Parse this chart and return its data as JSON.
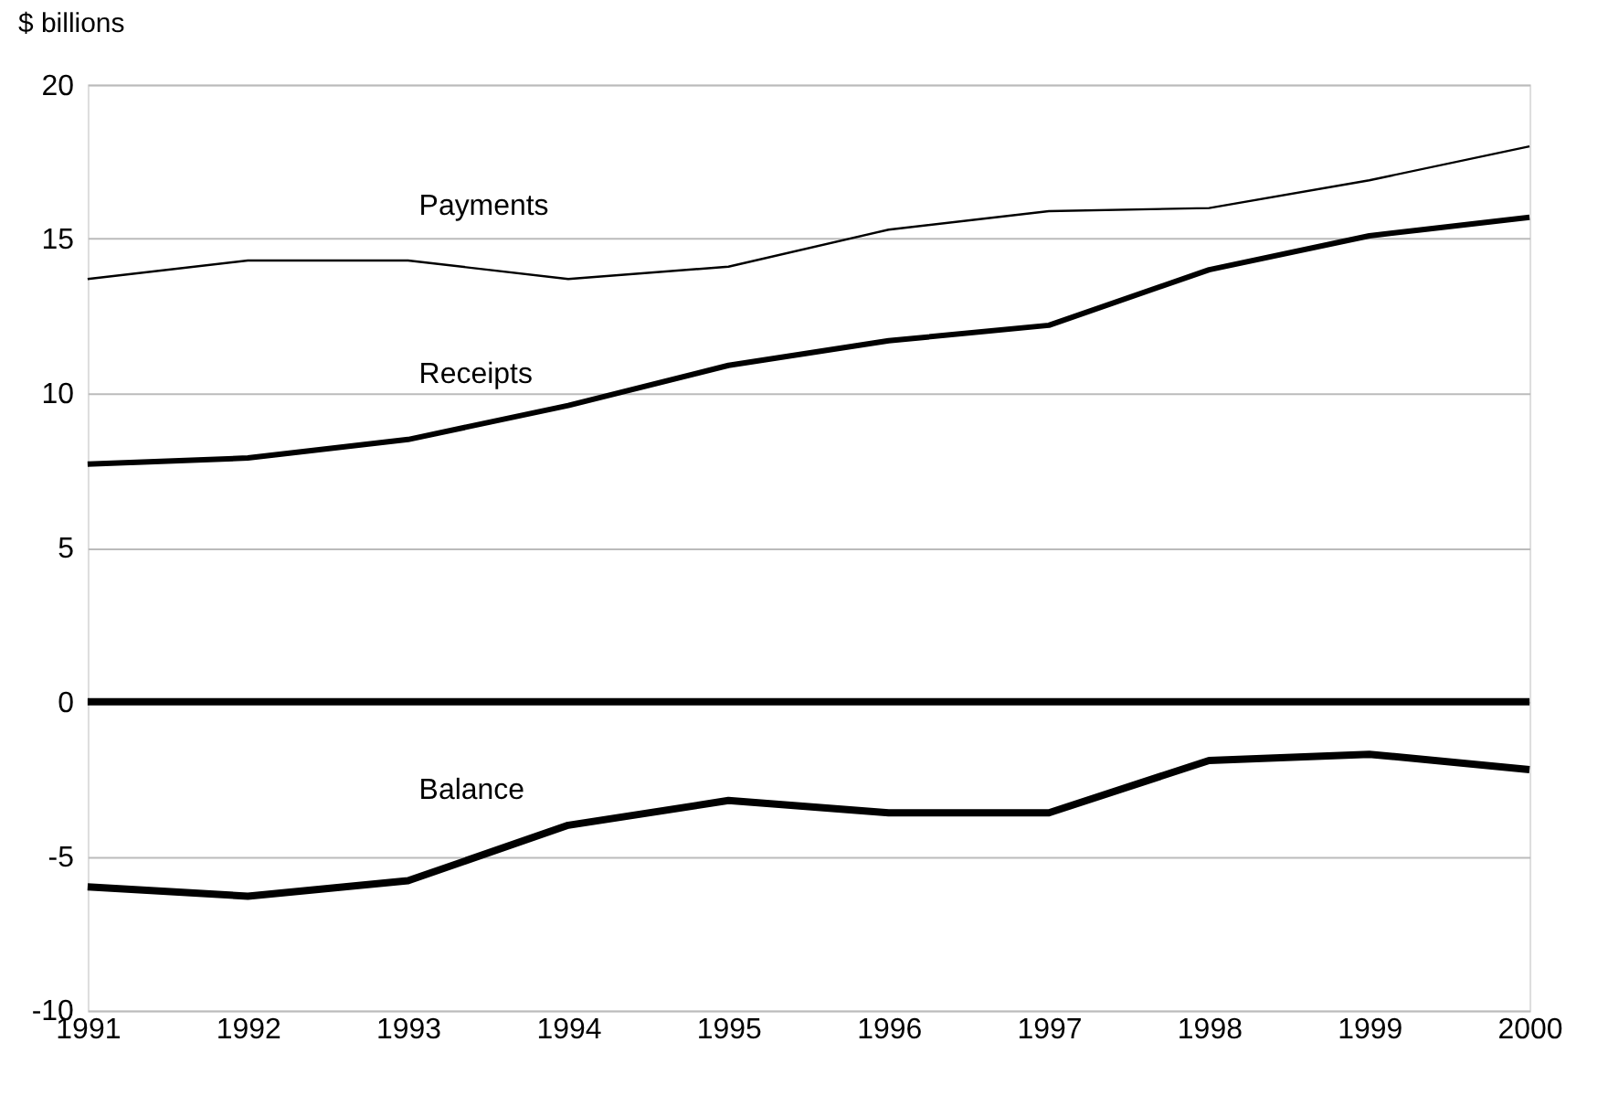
{
  "chart_data": {
    "type": "line",
    "ylabel": "$ billions",
    "x": [
      1991,
      1992,
      1993,
      1994,
      1995,
      1996,
      1997,
      1998,
      1999,
      2000
    ],
    "series": [
      {
        "name": "Payments",
        "color": "#000000",
        "values": [
          13.7,
          14.3,
          14.3,
          13.7,
          14.1,
          15.3,
          15.9,
          16.0,
          16.9,
          18.0
        ]
      },
      {
        "name": "Receipts",
        "color": "#000000",
        "values": [
          7.7,
          7.9,
          8.5,
          9.6,
          10.9,
          11.7,
          12.2,
          14.0,
          15.1,
          15.7
        ]
      },
      {
        "name": "Balance",
        "color": "#000000",
        "values": [
          -6.0,
          -6.3,
          -5.8,
          -4.0,
          -3.2,
          -3.6,
          -3.6,
          -1.9,
          -1.7,
          -2.2
        ]
      }
    ],
    "xlim": [
      1991,
      2000
    ],
    "xticks": [
      1991,
      1992,
      1993,
      1994,
      1995,
      1996,
      1997,
      1998,
      1999,
      2000
    ],
    "ylim": [
      -10,
      20
    ],
    "yticks": [
      -10,
      -5,
      0,
      5,
      10,
      15,
      20
    ],
    "ref_lines": [
      {
        "axis": "y",
        "value": 0,
        "color": "#000000"
      }
    ],
    "grid": "y",
    "marker": "none",
    "line_style": "solid"
  }
}
